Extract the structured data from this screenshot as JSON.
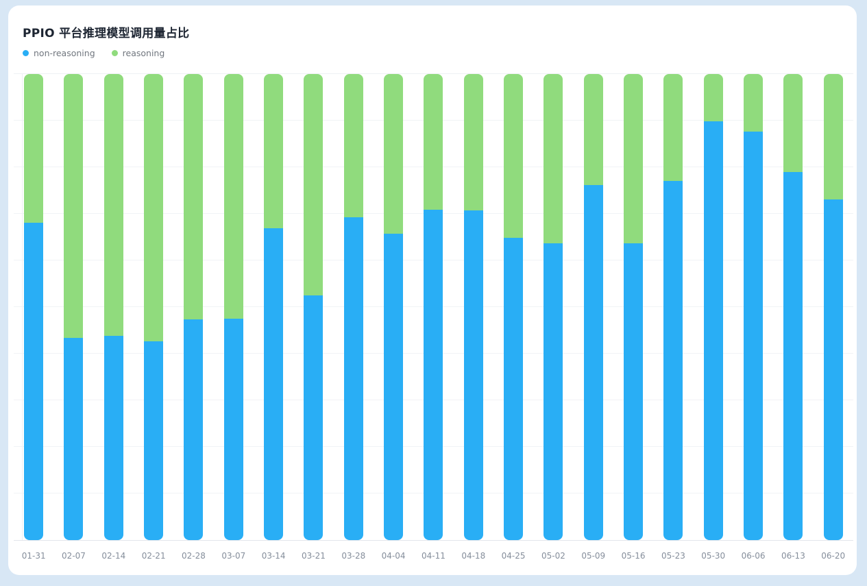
{
  "page": {
    "background_color": "#d8e7f5",
    "card_background_color": "#ffffff"
  },
  "header": {
    "title": "PPIO 平台推理模型调用量占比"
  },
  "legend": {
    "items": [
      {
        "label": "non-reasoning",
        "color": "#29aef5"
      },
      {
        "label": "reasoning",
        "color": "#90db7d"
      }
    ]
  },
  "chart_data": {
    "type": "bar",
    "stacked": true,
    "unit": "percent",
    "title": "PPIO 平台推理模型调用量占比",
    "xlabel": "",
    "ylabel": "",
    "ylim": [
      0,
      100
    ],
    "grid": true,
    "gridline_step_percent": 10,
    "y_tick_labels_visible": false,
    "legend_position": "top-left",
    "categories": [
      "01-31",
      "02-07",
      "02-14",
      "02-21",
      "02-28",
      "03-07",
      "03-14",
      "03-21",
      "03-28",
      "04-04",
      "04-11",
      "04-18",
      "04-25",
      "05-02",
      "05-09",
      "05-16",
      "05-23",
      "05-30",
      "06-06",
      "06-13",
      "06-20"
    ],
    "series": [
      {
        "name": "non-reasoning",
        "color": "#29aef5",
        "values": [
          68.1,
          43.4,
          43.8,
          42.6,
          47.4,
          47.5,
          66.9,
          52.5,
          69.3,
          65.7,
          70.9,
          70.7,
          64.9,
          63.7,
          76.2,
          63.7,
          77.1,
          89.9,
          87.6,
          79.0,
          73.1
        ]
      },
      {
        "name": "reasoning",
        "color": "#90db7d",
        "values": [
          31.9,
          56.6,
          56.2,
          57.4,
          52.6,
          52.5,
          33.1,
          47.5,
          30.7,
          34.3,
          29.1,
          29.3,
          35.1,
          36.3,
          23.8,
          36.3,
          22.9,
          10.1,
          12.4,
          21.0,
          26.9
        ]
      }
    ],
    "colors": {
      "gridline": "#f1f3f6",
      "axis_line": "#e2e6ec",
      "tick_label": "#858e9b",
      "title_text": "#1d2532",
      "legend_text": "#70767e"
    }
  }
}
